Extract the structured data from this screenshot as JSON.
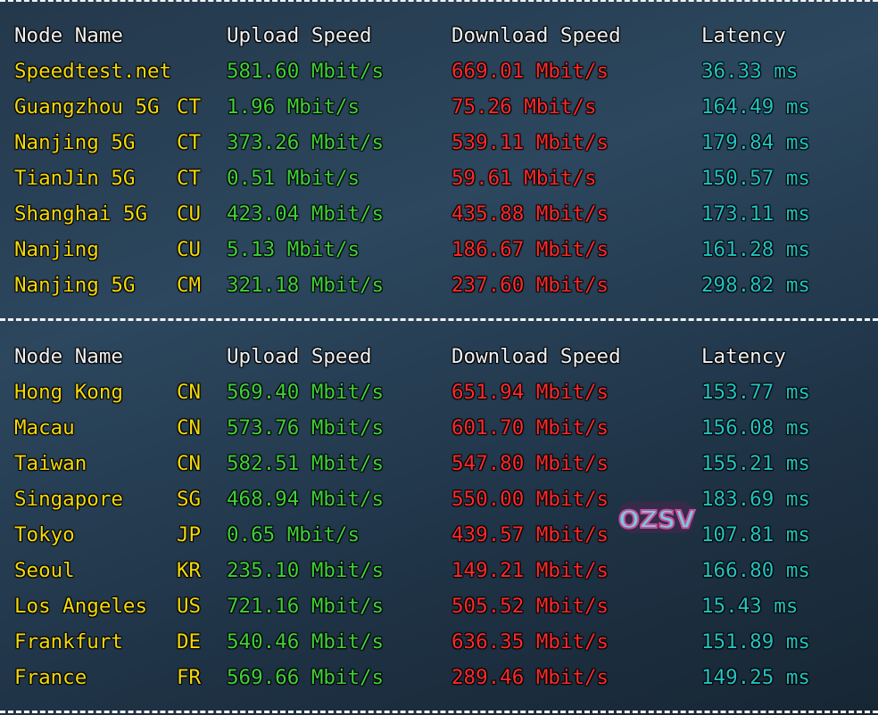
{
  "colors": {
    "node": "#f5d90a",
    "upload": "#3fd23a",
    "download": "#ff2a2a",
    "latency": "#22c3c3",
    "header": "#f2f2f2"
  },
  "headers": {
    "node": "Node Name",
    "upload": "Upload Speed",
    "download": "Download Speed",
    "latency": "Latency"
  },
  "domestic": [
    {
      "node": "Speedtest.net",
      "isp": "",
      "upload": "581.60 Mbit/s",
      "download": "669.01 Mbit/s",
      "latency": "36.33 ms"
    },
    {
      "node": "Guangzhou 5G",
      "isp": "CT",
      "upload": "1.96 Mbit/s",
      "download": "75.26 Mbit/s",
      "latency": "164.49 ms"
    },
    {
      "node": "Nanjing 5G",
      "isp": "CT",
      "upload": "373.26 Mbit/s",
      "download": "539.11 Mbit/s",
      "latency": "179.84 ms"
    },
    {
      "node": "TianJin 5G",
      "isp": "CT",
      "upload": "0.51 Mbit/s",
      "download": "59.61 Mbit/s",
      "latency": "150.57 ms"
    },
    {
      "node": "Shanghai 5G",
      "isp": "CU",
      "upload": "423.04 Mbit/s",
      "download": "435.88 Mbit/s",
      "latency": "173.11 ms"
    },
    {
      "node": "Nanjing",
      "isp": "CU",
      "upload": "5.13 Mbit/s",
      "download": "186.67 Mbit/s",
      "latency": "161.28 ms"
    },
    {
      "node": "Nanjing 5G",
      "isp": "CM",
      "upload": "321.18 Mbit/s",
      "download": "237.60 Mbit/s",
      "latency": "298.82 ms"
    }
  ],
  "global": [
    {
      "node": "Hong Kong",
      "isp": "CN",
      "upload": "569.40 Mbit/s",
      "download": "651.94 Mbit/s",
      "latency": "153.77 ms"
    },
    {
      "node": "Macau",
      "isp": "CN",
      "upload": "573.76 Mbit/s",
      "download": "601.70 Mbit/s",
      "latency": "156.08 ms"
    },
    {
      "node": "Taiwan",
      "isp": "CN",
      "upload": "582.51 Mbit/s",
      "download": "547.80 Mbit/s",
      "latency": "155.21 ms"
    },
    {
      "node": "Singapore",
      "isp": "SG",
      "upload": "468.94 Mbit/s",
      "download": "550.00 Mbit/s",
      "latency": "183.69 ms"
    },
    {
      "node": "Tokyo",
      "isp": "JP",
      "upload": "0.65 Mbit/s",
      "download": "439.57 Mbit/s",
      "latency": "107.81 ms"
    },
    {
      "node": "Seoul",
      "isp": "KR",
      "upload": "235.10 Mbit/s",
      "download": "149.21 Mbit/s",
      "latency": "166.80 ms"
    },
    {
      "node": "Los Angeles",
      "isp": "US",
      "upload": "721.16 Mbit/s",
      "download": "505.52 Mbit/s",
      "latency": "15.43 ms"
    },
    {
      "node": "Frankfurt",
      "isp": "DE",
      "upload": "540.46 Mbit/s",
      "download": "636.35 Mbit/s",
      "latency": "151.89 ms"
    },
    {
      "node": "France",
      "isp": "FR",
      "upload": "569.66 Mbit/s",
      "download": "289.46 Mbit/s",
      "latency": "149.25 ms"
    }
  ],
  "watermark": "OZSV"
}
